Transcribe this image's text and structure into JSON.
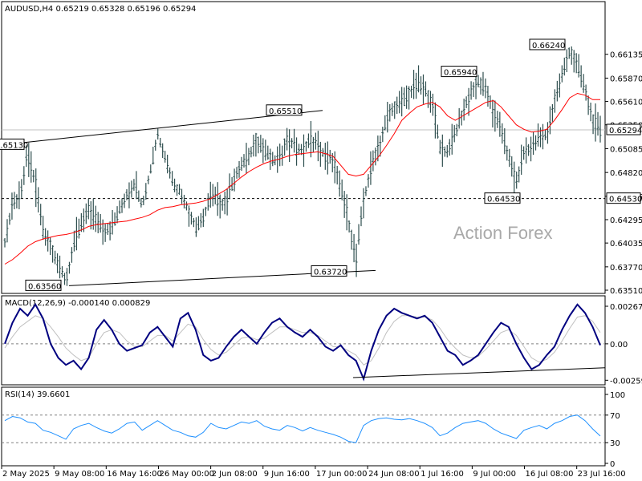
{
  "chart_data": [
    {
      "type": "ohlc",
      "title": "AUDUSD,H4  0.65219 0.65328 0.65196 0.65294",
      "ylim": [
        0.6351,
        0.6665
      ],
      "yticks": [
        "0.66135",
        "0.65870",
        "0.65610",
        "0.65350",
        "0.65085",
        "0.64820",
        "0.64555",
        "0.64295",
        "0.64035",
        "0.63770",
        "0.63510"
      ],
      "current_price": "0.65294",
      "support_level": "0.64530",
      "left_label": "0.65130",
      "annotations": [
        "0.66240",
        "0.65940",
        "0.65510",
        "0.64530",
        "0.63720",
        "0.63560"
      ],
      "watermark": "Action Forex",
      "ma_color": "#ff0000",
      "series": [
        {
          "label": "price",
          "values": [
            0.6405,
            0.6445,
            0.6455,
            0.6505,
            0.647,
            0.642,
            0.64,
            0.6378,
            0.636,
            0.64,
            0.6425,
            0.6442,
            0.643,
            0.6418,
            0.642,
            0.644,
            0.6458,
            0.647,
            0.6445,
            0.648,
            0.6525,
            0.65,
            0.647,
            0.646,
            0.644,
            0.642,
            0.643,
            0.646,
            0.6448,
            0.645,
            0.6475,
            0.649,
            0.65,
            0.652,
            0.6505,
            0.6495,
            0.6498,
            0.652,
            0.651,
            0.6505,
            0.652,
            0.651,
            0.65,
            0.6495,
            0.6465,
            0.643,
            0.6384,
            0.645,
            0.649,
            0.651,
            0.654,
            0.6555,
            0.656,
            0.657,
            0.6582,
            0.6575,
            0.656,
            0.651,
            0.6505,
            0.6525,
            0.655,
            0.657,
            0.6582,
            0.6575,
            0.655,
            0.653,
            0.65,
            0.647,
            0.6505,
            0.651,
            0.652,
            0.6525,
            0.656,
            0.659,
            0.6618,
            0.66,
            0.6575,
            0.654,
            0.6529
          ]
        },
        {
          "label": "ma",
          "values": [
            0.638,
            0.6385,
            0.6392,
            0.64,
            0.6405,
            0.6408,
            0.641,
            0.6412,
            0.6413,
            0.6415,
            0.6418,
            0.6422,
            0.6424,
            0.6425,
            0.6426,
            0.6427,
            0.6428,
            0.643,
            0.6432,
            0.6435,
            0.644,
            0.6443,
            0.6444,
            0.6446,
            0.6447,
            0.6448,
            0.645,
            0.6453,
            0.6458,
            0.6463,
            0.647,
            0.6477,
            0.6483,
            0.6488,
            0.6492,
            0.6495,
            0.6497,
            0.65,
            0.6502,
            0.6503,
            0.6504,
            0.6505,
            0.6503,
            0.65,
            0.649,
            0.648,
            0.6478,
            0.648,
            0.649,
            0.65,
            0.6512,
            0.6525,
            0.654,
            0.6548,
            0.6555,
            0.6558,
            0.656,
            0.6555,
            0.6545,
            0.654,
            0.6545,
            0.655,
            0.6555,
            0.656,
            0.6562,
            0.6555,
            0.6545,
            0.6535,
            0.653,
            0.6527,
            0.6528,
            0.653,
            0.654,
            0.6552,
            0.6565,
            0.657,
            0.6568,
            0.6563,
            0.6563
          ]
        }
      ]
    },
    {
      "type": "line",
      "title": "MACD(12,26,9) -0.000140 0.000829",
      "ylim": [
        -0.0028,
        0.0029
      ],
      "yticks": [
        "0.002671",
        "0.00",
        "-0.00259"
      ],
      "macd_color": "#000080",
      "signal_color": "#c0c0c0",
      "series": [
        {
          "label": "macd",
          "values": [
            0.0,
            0.0015,
            0.0025,
            0.002,
            0.0028,
            0.0018,
            0.0,
            -0.001,
            -0.0015,
            -0.0012,
            -0.0018,
            -0.001,
            0.001,
            0.0017,
            0.001,
            0.0,
            -0.0005,
            -0.0003,
            -0.0001,
            0.0008,
            0.0012,
            0.0005,
            -0.0002,
            0.0018,
            0.0022,
            0.001,
            -0.0008,
            -0.0012,
            -0.001,
            -0.0002,
            0.0005,
            0.001,
            0.0005,
            0.0,
            0.0008,
            0.0015,
            0.0018,
            0.0012,
            0.0008,
            0.0005,
            0.001,
            0.0005,
            -0.0002,
            -0.0005,
            -0.0001,
            -0.0008,
            -0.0012,
            -0.0025,
            -0.0005,
            0.001,
            0.002,
            0.0025,
            0.0022,
            0.002,
            0.0018,
            0.002,
            0.0015,
            0.0005,
            -0.0005,
            -0.0008,
            -0.0015,
            -0.0012,
            -0.0008,
            0.0,
            0.0008,
            0.0015,
            0.0012,
            0.0,
            -0.001,
            -0.0018,
            -0.0015,
            -0.0008,
            -0.0002,
            0.001,
            0.002,
            0.0028,
            0.0022,
            0.0012,
            -0.0001
          ]
        },
        {
          "label": "signal",
          "values": [
            -0.0003,
            0.0005,
            0.0012,
            0.0016,
            0.002,
            0.0018,
            0.0012,
            0.0005,
            -0.0003,
            -0.0008,
            -0.0012,
            -0.001,
            0.0,
            0.0008,
            0.001,
            0.0008,
            0.0002,
            -0.0002,
            -0.0002,
            0.0002,
            0.0006,
            0.0006,
            0.0002,
            0.0008,
            0.0014,
            0.0012,
            0.0003,
            -0.0004,
            -0.0008,
            -0.0006,
            -0.0001,
            0.0004,
            0.0005,
            0.0003,
            0.0004,
            0.0008,
            0.0012,
            0.0012,
            0.001,
            0.0008,
            0.0008,
            0.0006,
            0.0002,
            -0.0002,
            -0.0002,
            -0.0005,
            -0.0008,
            -0.0015,
            -0.0012,
            -0.0003,
            0.0008,
            0.0016,
            0.002,
            0.002,
            0.0019,
            0.0019,
            0.0017,
            0.0011,
            0.0003,
            -0.0003,
            -0.0008,
            -0.001,
            -0.0009,
            -0.0004,
            0.0002,
            0.0008,
            0.001,
            0.0006,
            -0.0002,
            -0.001,
            -0.0013,
            -0.0011,
            -0.0006,
            0.0002,
            0.0011,
            0.0019,
            0.002,
            0.0016,
            0.0008
          ]
        }
      ]
    },
    {
      "type": "line",
      "title": "RSI(14) 39.6601",
      "ylim": [
        0,
        100
      ],
      "yticks": [
        "100",
        "70",
        "30",
        "0"
      ],
      "rsi_color": "#1e90ff",
      "series": [
        {
          "label": "rsi",
          "values": [
            62,
            68,
            66,
            60,
            58,
            48,
            45,
            40,
            35,
            50,
            55,
            58,
            52,
            47,
            44,
            50,
            58,
            60,
            48,
            55,
            62,
            55,
            48,
            45,
            40,
            38,
            45,
            58,
            52,
            50,
            55,
            60,
            58,
            62,
            54,
            50,
            48,
            55,
            52,
            47,
            52,
            48,
            45,
            42,
            38,
            32,
            30,
            55,
            62,
            65,
            66,
            64,
            63,
            65,
            62,
            58,
            52,
            40,
            44,
            52,
            58,
            60,
            62,
            58,
            50,
            44,
            40,
            36,
            48,
            52,
            55,
            50,
            58,
            62,
            68,
            70,
            62,
            50,
            39.66
          ]
        }
      ]
    },
    {
      "type": "axis",
      "x_labels": [
        "2 May 2025",
        "9 May 08:00",
        "16 May 16:00",
        "26 May 00:00",
        "2 Jun 08:00",
        "9 Jun 16:00",
        "17 Jun 00:00",
        "24 Jun 08:00",
        "1 Jul 16:00",
        "9 Jul 00:00",
        "16 Jul 08:00",
        "23 Jul 16:00"
      ]
    }
  ]
}
